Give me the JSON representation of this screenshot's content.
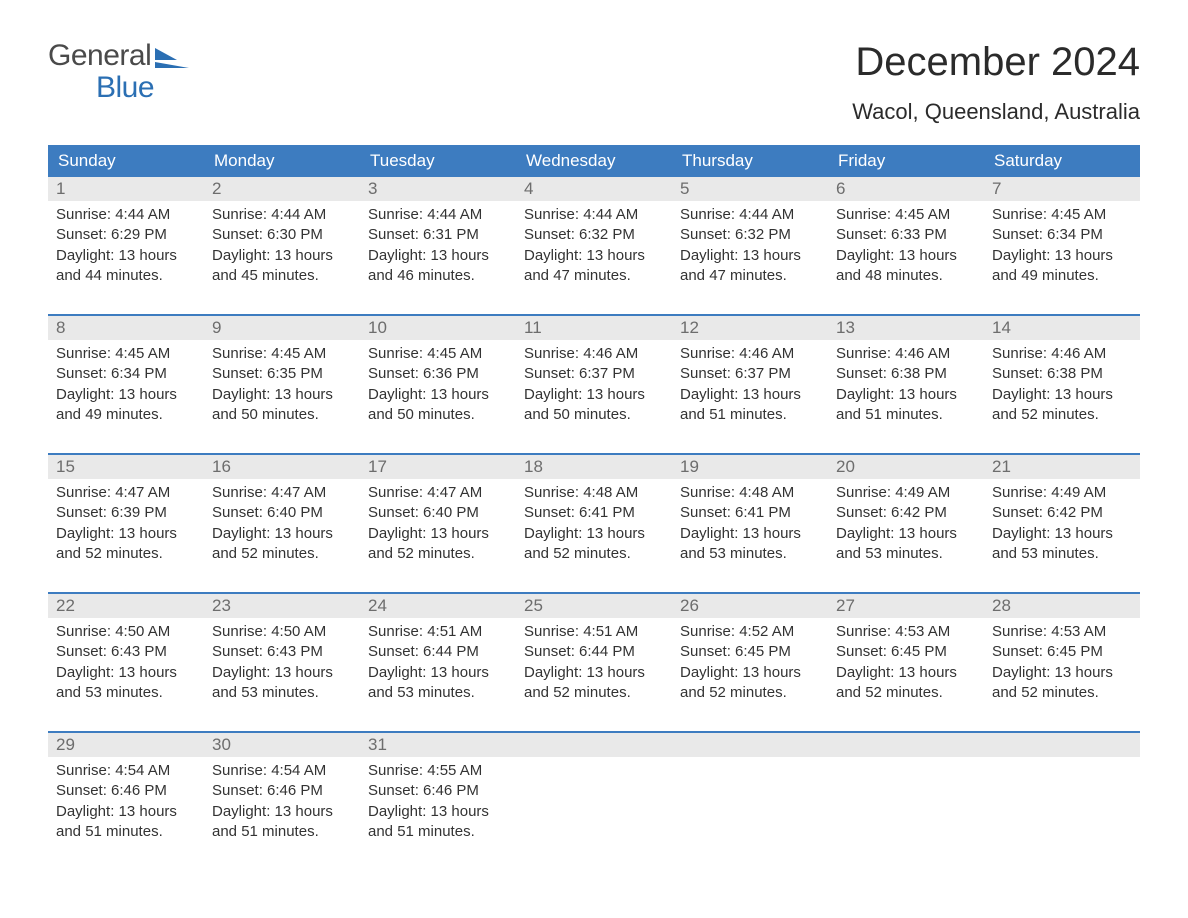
{
  "logo": {
    "line1": "General",
    "line2": "Blue",
    "mark_color": "#2b6fb3"
  },
  "title": "December 2024",
  "location": "Wacol, Queensland, Australia",
  "header_bg": "#3d7cc0",
  "header_fg": "#ffffff",
  "daynum_bg": "#e9e9e9",
  "daynum_fg": "#6d6d6d",
  "rule_color": "#3d7cc0",
  "text_color": "#333333",
  "days_of_week": [
    "Sunday",
    "Monday",
    "Tuesday",
    "Wednesday",
    "Thursday",
    "Friday",
    "Saturday"
  ],
  "weeks": [
    [
      {
        "n": "1",
        "sr": "Sunrise: 4:44 AM",
        "ss": "Sunset: 6:29 PM",
        "d1": "Daylight: 13 hours",
        "d2": "and 44 minutes."
      },
      {
        "n": "2",
        "sr": "Sunrise: 4:44 AM",
        "ss": "Sunset: 6:30 PM",
        "d1": "Daylight: 13 hours",
        "d2": "and 45 minutes."
      },
      {
        "n": "3",
        "sr": "Sunrise: 4:44 AM",
        "ss": "Sunset: 6:31 PM",
        "d1": "Daylight: 13 hours",
        "d2": "and 46 minutes."
      },
      {
        "n": "4",
        "sr": "Sunrise: 4:44 AM",
        "ss": "Sunset: 6:32 PM",
        "d1": "Daylight: 13 hours",
        "d2": "and 47 minutes."
      },
      {
        "n": "5",
        "sr": "Sunrise: 4:44 AM",
        "ss": "Sunset: 6:32 PM",
        "d1": "Daylight: 13 hours",
        "d2": "and 47 minutes."
      },
      {
        "n": "6",
        "sr": "Sunrise: 4:45 AM",
        "ss": "Sunset: 6:33 PM",
        "d1": "Daylight: 13 hours",
        "d2": "and 48 minutes."
      },
      {
        "n": "7",
        "sr": "Sunrise: 4:45 AM",
        "ss": "Sunset: 6:34 PM",
        "d1": "Daylight: 13 hours",
        "d2": "and 49 minutes."
      }
    ],
    [
      {
        "n": "8",
        "sr": "Sunrise: 4:45 AM",
        "ss": "Sunset: 6:34 PM",
        "d1": "Daylight: 13 hours",
        "d2": "and 49 minutes."
      },
      {
        "n": "9",
        "sr": "Sunrise: 4:45 AM",
        "ss": "Sunset: 6:35 PM",
        "d1": "Daylight: 13 hours",
        "d2": "and 50 minutes."
      },
      {
        "n": "10",
        "sr": "Sunrise: 4:45 AM",
        "ss": "Sunset: 6:36 PM",
        "d1": "Daylight: 13 hours",
        "d2": "and 50 minutes."
      },
      {
        "n": "11",
        "sr": "Sunrise: 4:46 AM",
        "ss": "Sunset: 6:37 PM",
        "d1": "Daylight: 13 hours",
        "d2": "and 50 minutes."
      },
      {
        "n": "12",
        "sr": "Sunrise: 4:46 AM",
        "ss": "Sunset: 6:37 PM",
        "d1": "Daylight: 13 hours",
        "d2": "and 51 minutes."
      },
      {
        "n": "13",
        "sr": "Sunrise: 4:46 AM",
        "ss": "Sunset: 6:38 PM",
        "d1": "Daylight: 13 hours",
        "d2": "and 51 minutes."
      },
      {
        "n": "14",
        "sr": "Sunrise: 4:46 AM",
        "ss": "Sunset: 6:38 PM",
        "d1": "Daylight: 13 hours",
        "d2": "and 52 minutes."
      }
    ],
    [
      {
        "n": "15",
        "sr": "Sunrise: 4:47 AM",
        "ss": "Sunset: 6:39 PM",
        "d1": "Daylight: 13 hours",
        "d2": "and 52 minutes."
      },
      {
        "n": "16",
        "sr": "Sunrise: 4:47 AM",
        "ss": "Sunset: 6:40 PM",
        "d1": "Daylight: 13 hours",
        "d2": "and 52 minutes."
      },
      {
        "n": "17",
        "sr": "Sunrise: 4:47 AM",
        "ss": "Sunset: 6:40 PM",
        "d1": "Daylight: 13 hours",
        "d2": "and 52 minutes."
      },
      {
        "n": "18",
        "sr": "Sunrise: 4:48 AM",
        "ss": "Sunset: 6:41 PM",
        "d1": "Daylight: 13 hours",
        "d2": "and 52 minutes."
      },
      {
        "n": "19",
        "sr": "Sunrise: 4:48 AM",
        "ss": "Sunset: 6:41 PM",
        "d1": "Daylight: 13 hours",
        "d2": "and 53 minutes."
      },
      {
        "n": "20",
        "sr": "Sunrise: 4:49 AM",
        "ss": "Sunset: 6:42 PM",
        "d1": "Daylight: 13 hours",
        "d2": "and 53 minutes."
      },
      {
        "n": "21",
        "sr": "Sunrise: 4:49 AM",
        "ss": "Sunset: 6:42 PM",
        "d1": "Daylight: 13 hours",
        "d2": "and 53 minutes."
      }
    ],
    [
      {
        "n": "22",
        "sr": "Sunrise: 4:50 AM",
        "ss": "Sunset: 6:43 PM",
        "d1": "Daylight: 13 hours",
        "d2": "and 53 minutes."
      },
      {
        "n": "23",
        "sr": "Sunrise: 4:50 AM",
        "ss": "Sunset: 6:43 PM",
        "d1": "Daylight: 13 hours",
        "d2": "and 53 minutes."
      },
      {
        "n": "24",
        "sr": "Sunrise: 4:51 AM",
        "ss": "Sunset: 6:44 PM",
        "d1": "Daylight: 13 hours",
        "d2": "and 53 minutes."
      },
      {
        "n": "25",
        "sr": "Sunrise: 4:51 AM",
        "ss": "Sunset: 6:44 PM",
        "d1": "Daylight: 13 hours",
        "d2": "and 52 minutes."
      },
      {
        "n": "26",
        "sr": "Sunrise: 4:52 AM",
        "ss": "Sunset: 6:45 PM",
        "d1": "Daylight: 13 hours",
        "d2": "and 52 minutes."
      },
      {
        "n": "27",
        "sr": "Sunrise: 4:53 AM",
        "ss": "Sunset: 6:45 PM",
        "d1": "Daylight: 13 hours",
        "d2": "and 52 minutes."
      },
      {
        "n": "28",
        "sr": "Sunrise: 4:53 AM",
        "ss": "Sunset: 6:45 PM",
        "d1": "Daylight: 13 hours",
        "d2": "and 52 minutes."
      }
    ],
    [
      {
        "n": "29",
        "sr": "Sunrise: 4:54 AM",
        "ss": "Sunset: 6:46 PM",
        "d1": "Daylight: 13 hours",
        "d2": "and 51 minutes."
      },
      {
        "n": "30",
        "sr": "Sunrise: 4:54 AM",
        "ss": "Sunset: 6:46 PM",
        "d1": "Daylight: 13 hours",
        "d2": "and 51 minutes."
      },
      {
        "n": "31",
        "sr": "Sunrise: 4:55 AM",
        "ss": "Sunset: 6:46 PM",
        "d1": "Daylight: 13 hours",
        "d2": "and 51 minutes."
      },
      null,
      null,
      null,
      null
    ]
  ]
}
